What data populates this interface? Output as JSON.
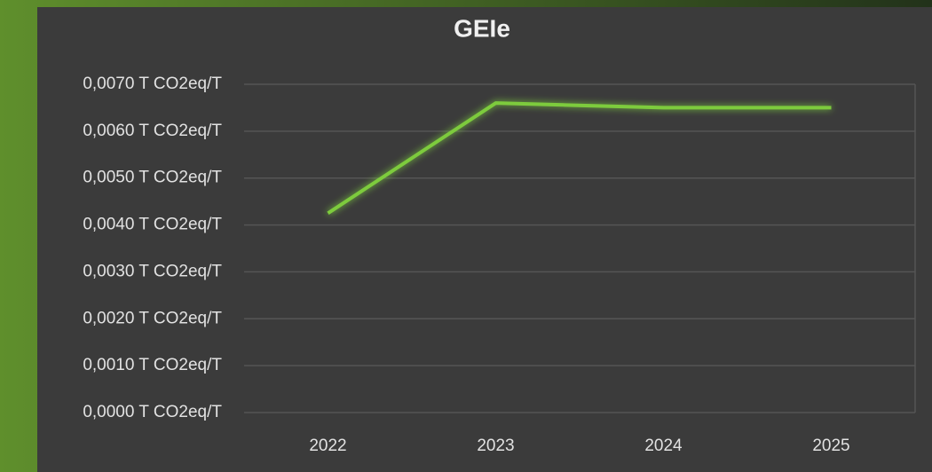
{
  "chart_data": {
    "type": "line",
    "title": "GEIe",
    "categories": [
      "2022",
      "2023",
      "2024",
      "2025"
    ],
    "series": [
      {
        "name": "GEIe",
        "color": "#7dcb3e",
        "values": [
          0.00425,
          0.0066,
          0.0065,
          0.0065
        ]
      }
    ],
    "ylim": [
      0,
      0.007
    ],
    "yticks": [
      {
        "value": 0,
        "label": "0,0000 T CO2eq/T"
      },
      {
        "value": 0.001,
        "label": "0,0010 T CO2eq/T"
      },
      {
        "value": 0.002,
        "label": "0,0020 T CO2eq/T"
      },
      {
        "value": 0.003,
        "label": "0,0030 T CO2eq/T"
      },
      {
        "value": 0.004,
        "label": "0,0040 T CO2eq/T"
      },
      {
        "value": 0.005,
        "label": "0,0050 T CO2eq/T"
      },
      {
        "value": 0.006,
        "label": "0,0060 T CO2eq/T"
      },
      {
        "value": 0.007,
        "label": "0,0070 T CO2eq/T"
      }
    ],
    "grid": true
  }
}
